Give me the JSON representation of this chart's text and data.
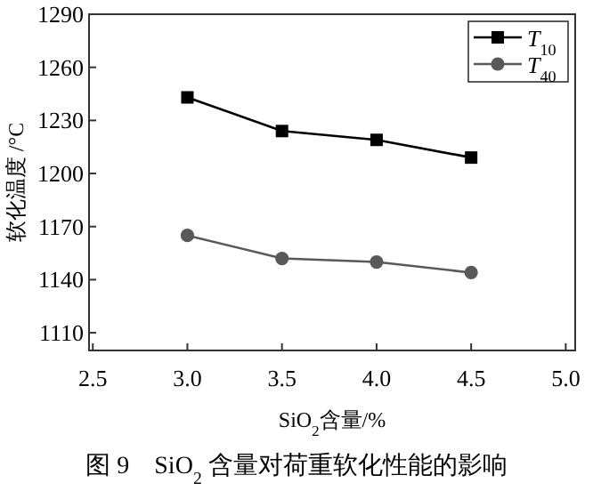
{
  "chart_data": {
    "type": "line",
    "xlabel": "SiO$_{2}$含量/%",
    "ylabel": "软化温度 /°C",
    "annotations": [
      "图 9　SiO$_{2}$ 含量对荷重软化性能的影响"
    ],
    "x": [
      3.0,
      3.5,
      4.0,
      4.5
    ],
    "series": [
      {
        "name": "*T*$_{10}$",
        "color": "#000000",
        "marker": "square",
        "values": [
          1243,
          1224,
          1219,
          1209
        ]
      },
      {
        "name": "*T*$_{40}$",
        "color": "#595959",
        "marker": "circle",
        "values": [
          1165,
          1152,
          1150,
          1144
        ]
      }
    ],
    "xlim": [
      2.48,
      5.05
    ],
    "ylim": [
      1100,
      1290
    ],
    "xticks": [
      {
        "value": 2.5,
        "label": "2.5"
      },
      {
        "value": 3.0,
        "label": "3.0"
      },
      {
        "value": 3.5,
        "label": "3.5"
      },
      {
        "value": 4.0,
        "label": "4.0"
      },
      {
        "value": 4.5,
        "label": "4.5"
      },
      {
        "value": 5.0,
        "label": "5.0"
      }
    ],
    "yticks": [
      1110,
      1140,
      1170,
      1200,
      1230,
      1260,
      1290
    ],
    "legend": "top right",
    "line_style": "solid"
  }
}
